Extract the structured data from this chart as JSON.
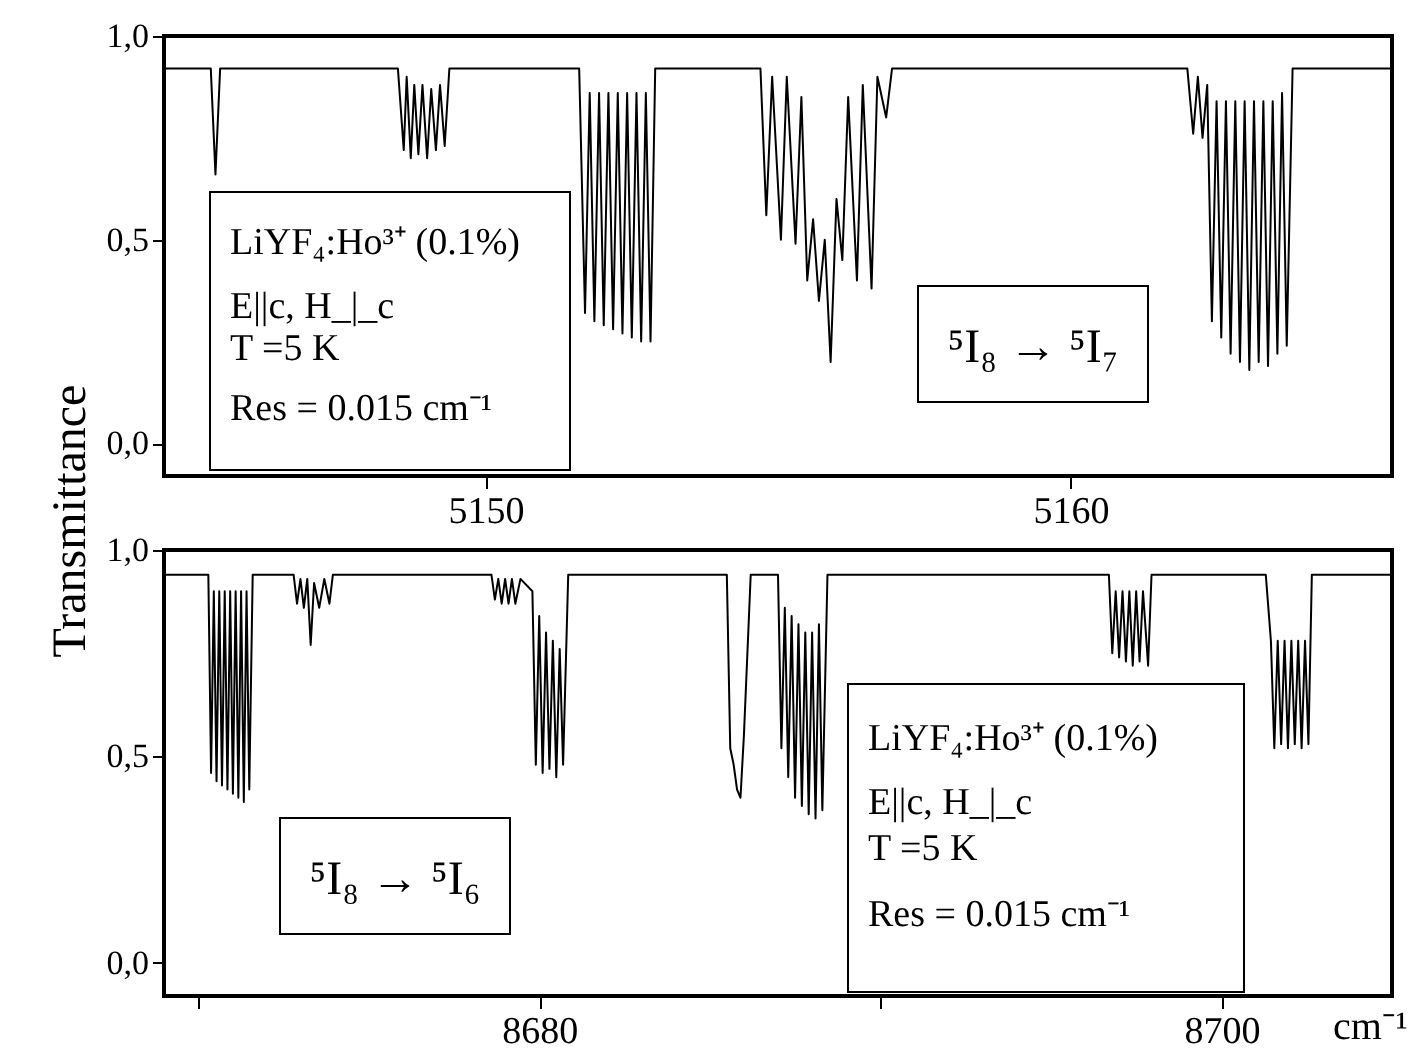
{
  "chart_data": [
    {
      "type": "line",
      "ylabel": "Transmittance",
      "xlim": [
        5144.5,
        5165.5
      ],
      "xticks": [
        5150,
        5160
      ],
      "ylim": [
        -0.08,
        1.0
      ],
      "yticks": [
        {
          "value": 0,
          "label": "0,0"
        },
        {
          "value": 0.5,
          "label": "0,5"
        },
        {
          "value": 1,
          "label": "1,0"
        }
      ],
      "annotations": [
        "LiYF₄:Ho³⁺ (0.1%)",
        "E||c, H_|_c",
        "T =5 K",
        "Res = 0.015 cm⁻¹",
        "⁵I₈ → ⁵I₇"
      ],
      "series": [
        {
          "color": "#000000",
          "x": [
            5144.5,
            5145.3,
            5145.38,
            5145.46,
            5148.5,
            5148.6,
            5148.65,
            5148.72,
            5148.78,
            5148.85,
            5148.92,
            5149.0,
            5149.07,
            5149.15,
            5149.22,
            5149.3,
            5149.38,
            5151.6,
            5151.7,
            5151.78,
            5151.86,
            5151.94,
            5152.02,
            5152.1,
            5152.18,
            5152.26,
            5152.34,
            5152.42,
            5152.5,
            5152.58,
            5152.66,
            5152.74,
            5152.82,
            5152.9,
            5154.7,
            5154.8,
            5154.9,
            5155.05,
            5155.15,
            5155.3,
            5155.4,
            5155.5,
            5155.6,
            5155.7,
            5155.8,
            5155.9,
            5156.0,
            5156.1,
            5156.2,
            5156.35,
            5156.45,
            5156.6,
            5156.7,
            5156.85,
            5156.95,
            5162.0,
            5162.1,
            5162.18,
            5162.26,
            5162.34,
            5162.42,
            5162.5,
            5162.58,
            5162.66,
            5162.74,
            5162.82,
            5162.9,
            5162.98,
            5163.06,
            5163.14,
            5163.22,
            5163.3,
            5163.38,
            5163.46,
            5163.54,
            5163.62,
            5163.7,
            5163.8,
            5165.5
          ],
          "values": [
            0.92,
            0.92,
            0.66,
            0.92,
            0.92,
            0.72,
            0.9,
            0.7,
            0.88,
            0.71,
            0.88,
            0.7,
            0.87,
            0.72,
            0.88,
            0.73,
            0.92,
            0.92,
            0.32,
            0.86,
            0.3,
            0.86,
            0.29,
            0.86,
            0.28,
            0.86,
            0.27,
            0.86,
            0.26,
            0.86,
            0.25,
            0.86,
            0.25,
            0.92,
            0.92,
            0.56,
            0.9,
            0.5,
            0.9,
            0.49,
            0.85,
            0.4,
            0.55,
            0.35,
            0.5,
            0.2,
            0.6,
            0.45,
            0.85,
            0.4,
            0.88,
            0.38,
            0.9,
            0.8,
            0.92,
            0.92,
            0.76,
            0.9,
            0.75,
            0.88,
            0.3,
            0.84,
            0.26,
            0.84,
            0.22,
            0.84,
            0.2,
            0.84,
            0.18,
            0.84,
            0.2,
            0.84,
            0.19,
            0.84,
            0.22,
            0.86,
            0.24,
            0.92,
            0.92
          ]
        }
      ]
    },
    {
      "type": "line",
      "xlabel": "cm⁻¹",
      "xlim": [
        8669,
        8705
      ],
      "xticks": [
        {
          "value": 8670,
          "label": null
        },
        8680,
        {
          "value": 8690,
          "label": null
        },
        8700
      ],
      "ylim": [
        -0.08,
        1.0
      ],
      "yticks": [
        {
          "value": 0,
          "label": "0,0"
        },
        {
          "value": 0.5,
          "label": "0,5"
        },
        {
          "value": 1,
          "label": "1,0"
        }
      ],
      "annotations": [
        "LiYF₄:Ho³⁺ (0.1%)",
        "E||c, H_|_c",
        "T =5 K",
        "Res = 0.015 cm⁻¹",
        "⁵I₈ → ⁵I₆"
      ],
      "series": [
        {
          "color": "#000000",
          "x": [
            8669,
            8670.3,
            8670.38,
            8670.46,
            8670.54,
            8670.62,
            8670.7,
            8670.78,
            8670.86,
            8670.94,
            8671.02,
            8671.1,
            8671.18,
            8671.26,
            8671.34,
            8671.42,
            8671.5,
            8671.6,
            8672.8,
            8672.9,
            8673.0,
            8673.1,
            8673.2,
            8673.3,
            8673.4,
            8673.55,
            8673.7,
            8673.85,
            8673.95,
            8678.6,
            8678.7,
            8678.8,
            8678.9,
            8679.0,
            8679.1,
            8679.2,
            8679.3,
            8679.45,
            8679.8,
            8679.9,
            8680.0,
            8680.1,
            8680.2,
            8680.3,
            8680.4,
            8680.5,
            8680.6,
            8680.7,
            8680.85,
            8685.5,
            8685.6,
            8685.7,
            8685.8,
            8685.9,
            8686.0,
            8686.2,
            8687.0,
            8687.1,
            8687.2,
            8687.3,
            8687.4,
            8687.5,
            8687.6,
            8687.7,
            8687.8,
            8687.9,
            8688.0,
            8688.1,
            8688.2,
            8688.3,
            8688.45,
            8696.7,
            8696.8,
            8696.9,
            8697.0,
            8697.1,
            8697.2,
            8697.3,
            8697.4,
            8697.5,
            8697.6,
            8697.7,
            8697.85,
            8697.95,
            8701.3,
            8701.45,
            8701.55,
            8701.65,
            8701.75,
            8701.85,
            8701.95,
            8702.05,
            8702.15,
            8702.25,
            8702.35,
            8702.45,
            8702.55,
            8702.65,
            8705
          ],
          "values": [
            0.94,
            0.94,
            0.46,
            0.9,
            0.44,
            0.9,
            0.43,
            0.9,
            0.42,
            0.9,
            0.41,
            0.9,
            0.4,
            0.9,
            0.39,
            0.9,
            0.42,
            0.94,
            0.94,
            0.87,
            0.93,
            0.86,
            0.93,
            0.77,
            0.92,
            0.86,
            0.93,
            0.87,
            0.94,
            0.94,
            0.88,
            0.93,
            0.87,
            0.93,
            0.87,
            0.93,
            0.87,
            0.93,
            0.9,
            0.48,
            0.84,
            0.46,
            0.8,
            0.47,
            0.78,
            0.45,
            0.76,
            0.48,
            0.94,
            0.94,
            0.52,
            0.48,
            0.42,
            0.4,
            0.55,
            0.94,
            0.94,
            0.52,
            0.86,
            0.45,
            0.84,
            0.4,
            0.82,
            0.38,
            0.8,
            0.36,
            0.8,
            0.35,
            0.82,
            0.37,
            0.94,
            0.94,
            0.75,
            0.9,
            0.74,
            0.9,
            0.73,
            0.9,
            0.72,
            0.9,
            0.73,
            0.9,
            0.72,
            0.94,
            0.94,
            0.78,
            0.52,
            0.78,
            0.53,
            0.78,
            0.52,
            0.78,
            0.53,
            0.78,
            0.52,
            0.78,
            0.53,
            0.94,
            0.94
          ]
        }
      ]
    }
  ]
}
